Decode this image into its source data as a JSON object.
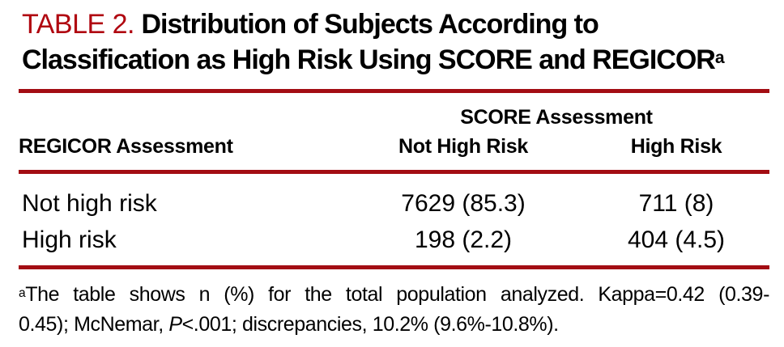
{
  "title": {
    "label": "TABLE 2.",
    "line1": "Distribution of Subjects According to",
    "line2": "Classification as High Risk Using SCORE and REGICOR",
    "superscript": "a"
  },
  "table": {
    "spanner": "SCORE Assessment",
    "stub_header": "REGICOR Assessment",
    "columns": [
      "Not High Risk",
      "High Risk"
    ],
    "rows": [
      {
        "label": "Not high risk",
        "cells": [
          "7629 (85.3)",
          "711 (8)"
        ]
      },
      {
        "label": "High risk",
        "cells": [
          "198 (2.2)",
          "404 (4.5)"
        ]
      }
    ]
  },
  "footnote": {
    "marker": "a",
    "line1": "The table shows n (%) for the total population analyzed. Kappa=0.42 (0.39-",
    "line2_pre": "0.45); McNemar, ",
    "line2_italic": "P",
    "line2_post": "<.001; discrepancies, 10.2% (9.6%-10.8%)."
  },
  "colors": {
    "title_red": "#b00610",
    "rule_red": "#a30d13"
  }
}
